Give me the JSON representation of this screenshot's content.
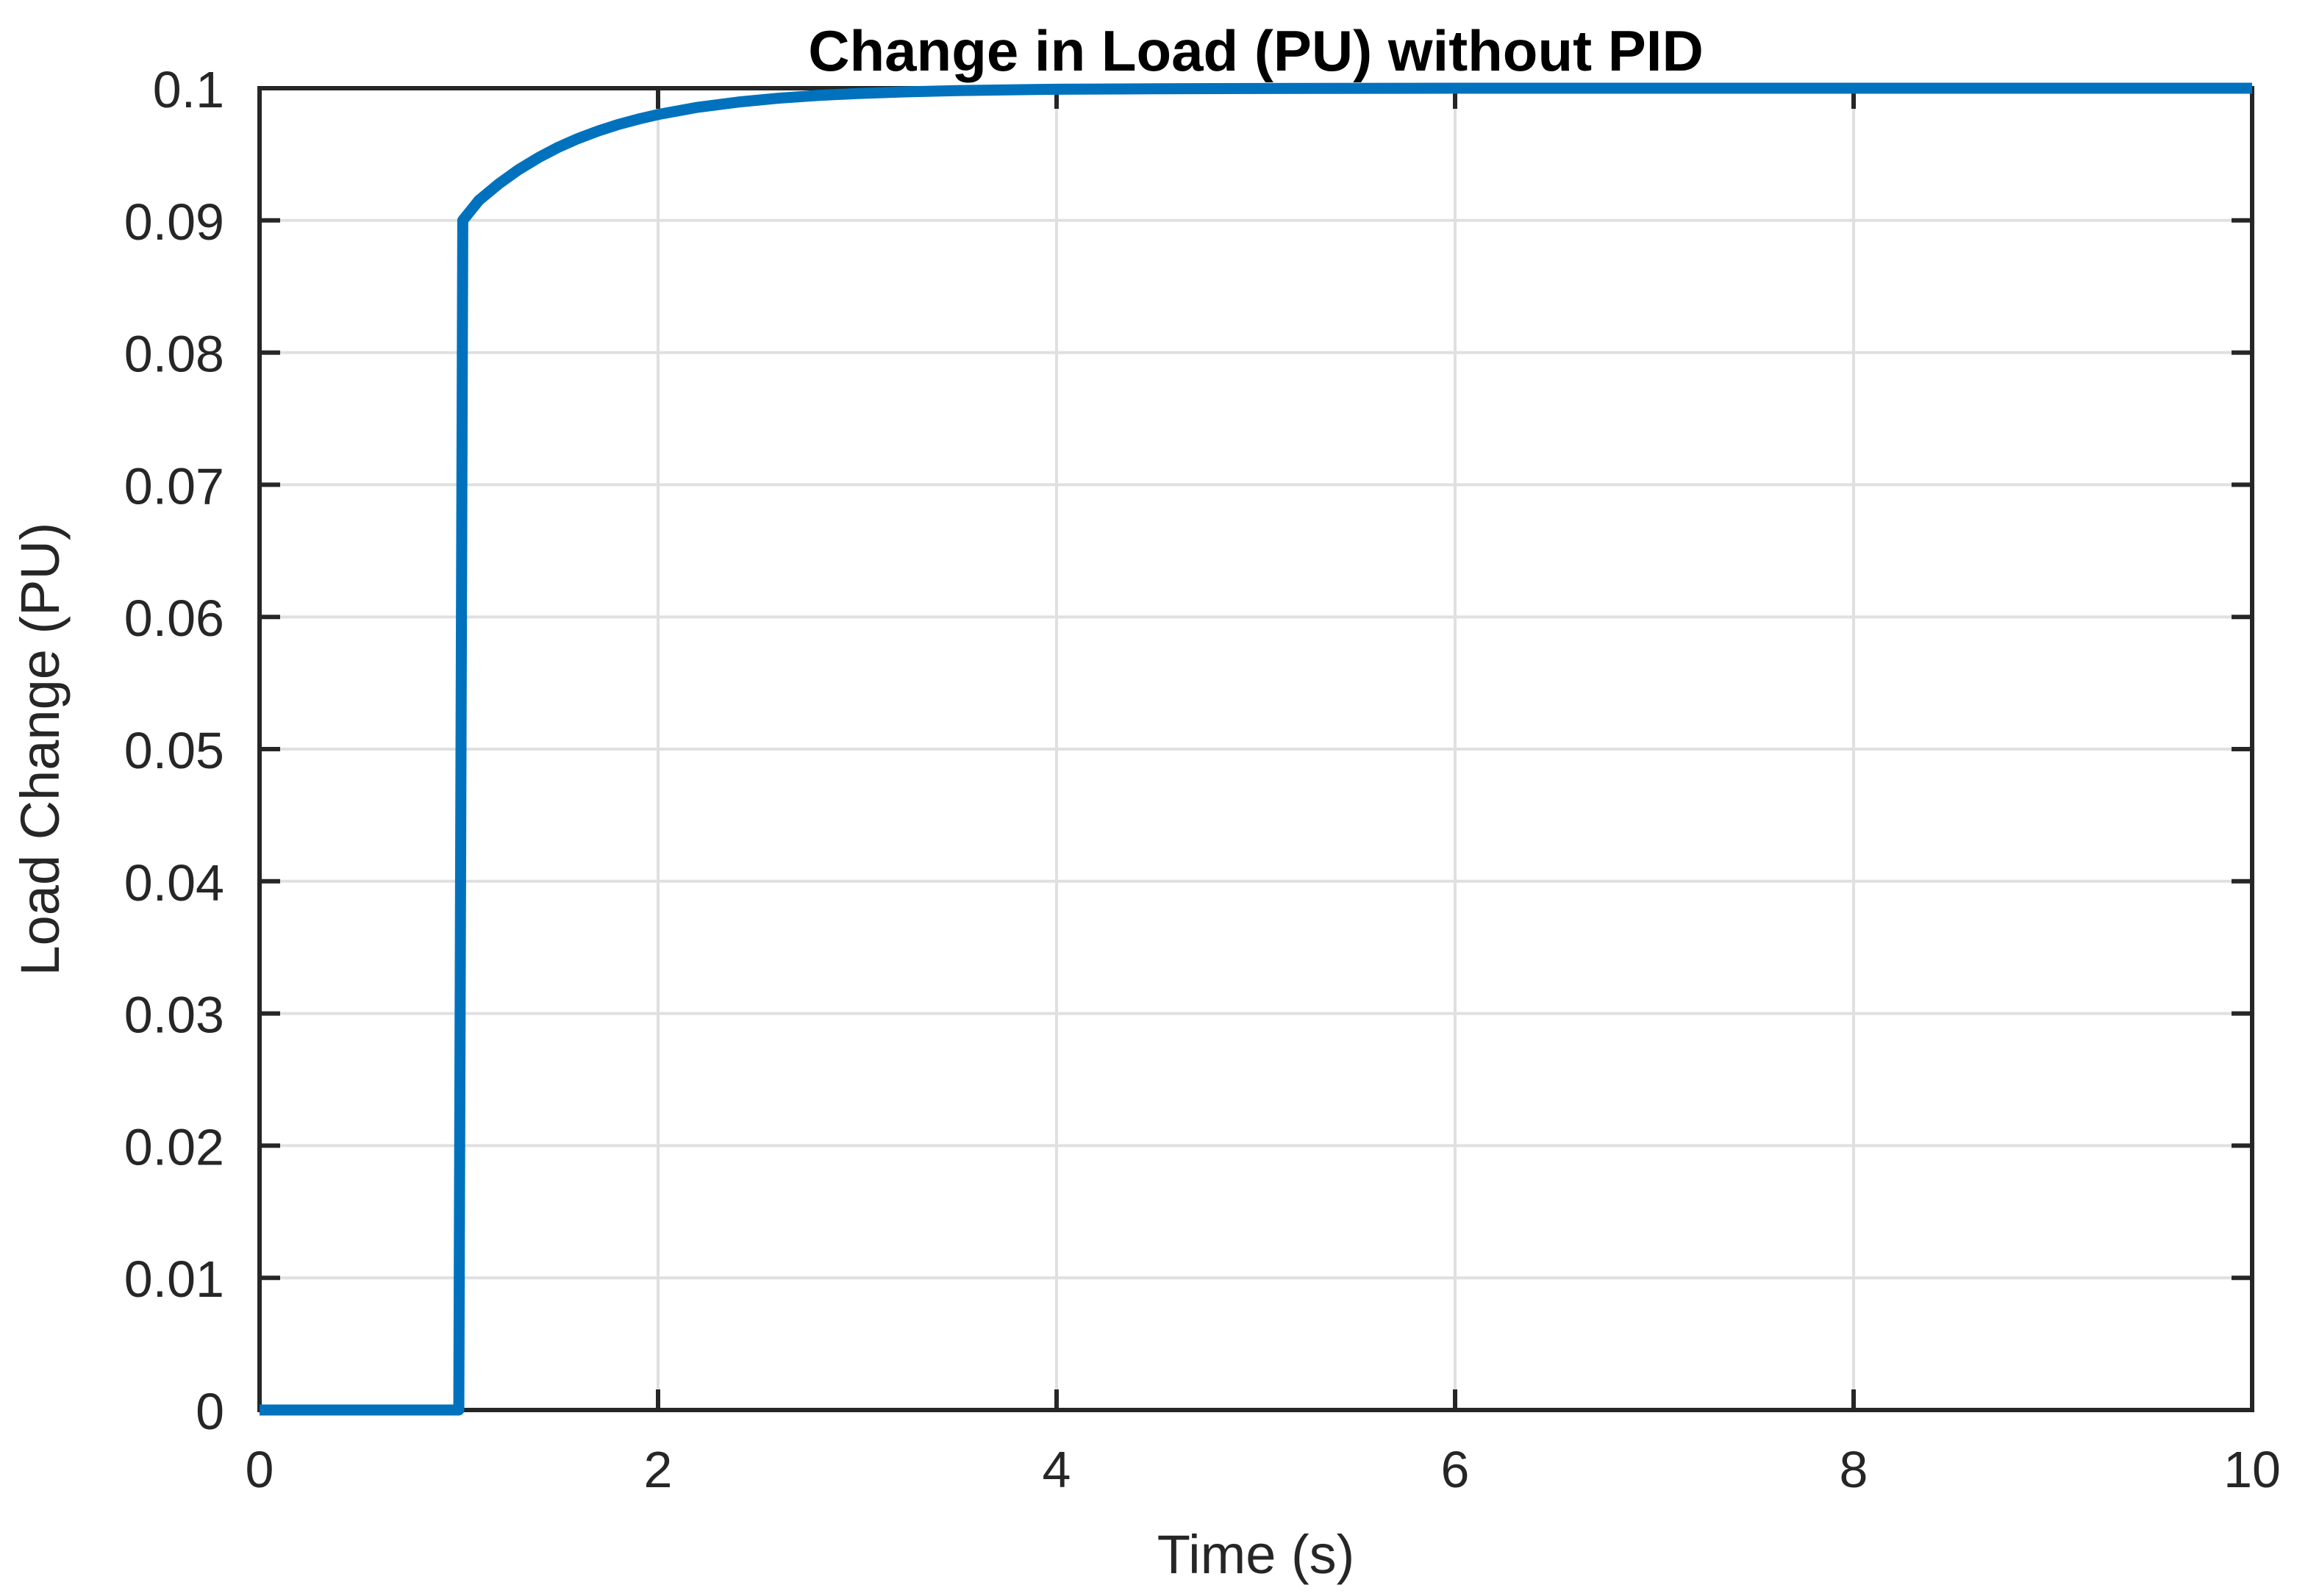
{
  "chart_data": {
    "type": "line",
    "title": "Change in Load (PU) without PID",
    "xlabel": "Time (s)",
    "ylabel": "Load Change (PU)",
    "xlim": [
      0,
      10
    ],
    "ylim": [
      0,
      0.1
    ],
    "x_ticks": [
      0,
      2,
      4,
      6,
      8,
      10
    ],
    "x_tick_labels": [
      "0",
      "2",
      "4",
      "6",
      "8",
      "10"
    ],
    "y_ticks": [
      0,
      0.01,
      0.02,
      0.03,
      0.04,
      0.05,
      0.06,
      0.07,
      0.08,
      0.09,
      0.1
    ],
    "y_tick_labels": [
      "0",
      "0.01",
      "0.02",
      "0.03",
      "0.04",
      "0.05",
      "0.06",
      "0.07",
      "0.08",
      "0.09",
      "0.1"
    ],
    "grid": true,
    "legend_position": "none",
    "colors": {
      "line": "#0072bd",
      "grid": "#e0e0e0",
      "axis": "#262626",
      "title": "#000000",
      "background": "#ffffff"
    },
    "series": [
      {
        "points": [
          [
            0,
            0
          ],
          [
            0.25,
            0
          ],
          [
            0.5,
            0
          ],
          [
            0.75,
            0
          ],
          [
            1,
            0
          ],
          [
            1.02,
            0.09
          ],
          [
            1.1,
            0.0915
          ],
          [
            1.2,
            0.09276
          ],
          [
            1.3,
            0.09384
          ],
          [
            1.4,
            0.09475
          ],
          [
            1.5,
            0.09554
          ],
          [
            1.6,
            0.0962
          ],
          [
            1.7,
            0.09677
          ],
          [
            1.8,
            0.09725
          ],
          [
            1.9,
            0.09766
          ],
          [
            2,
            0.09801
          ],
          [
            2.2,
            0.09856
          ],
          [
            2.4,
            0.09895
          ],
          [
            2.6,
            0.09924
          ],
          [
            2.8,
            0.09945
          ],
          [
            3,
            0.0996
          ],
          [
            3.25,
            0.09973
          ],
          [
            3.5,
            0.09982
          ],
          [
            4,
            0.09992
          ],
          [
            4.5,
            0.09996
          ],
          [
            5,
            0.09998
          ],
          [
            6,
            0.1
          ],
          [
            7,
            0.1
          ],
          [
            8,
            0.1
          ],
          [
            9,
            0.1
          ],
          [
            10,
            0.1
          ]
        ]
      }
    ]
  }
}
